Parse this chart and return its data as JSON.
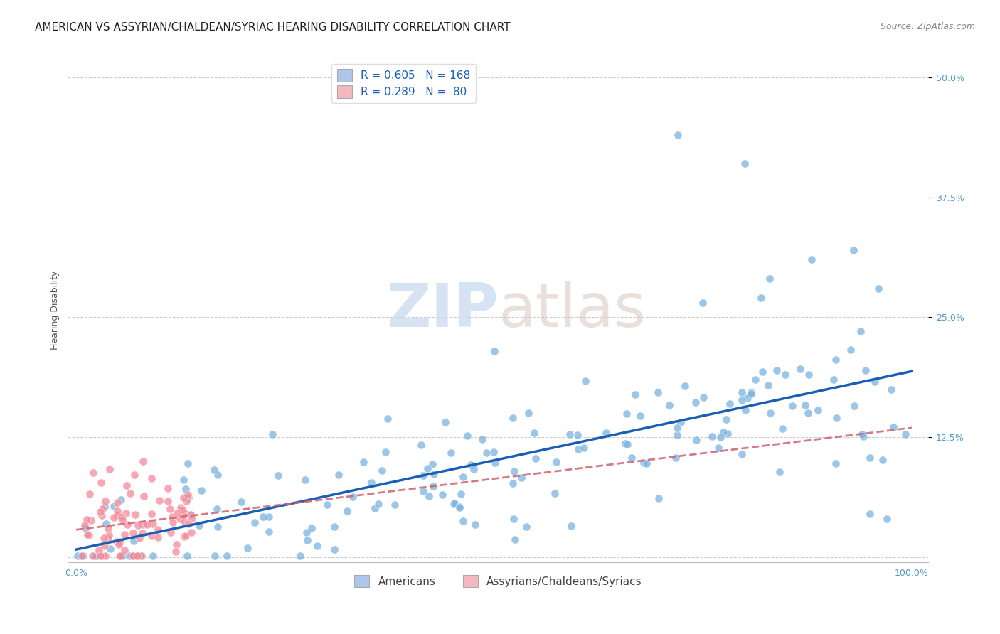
{
  "title": "AMERICAN VS ASSYRIAN/CHALDEAN/SYRIAC HEARING DISABILITY CORRELATION CHART",
  "source": "Source: ZipAtlas.com",
  "ylabel": "Hearing Disability",
  "ytick_values": [
    0.125,
    0.25,
    0.375,
    0.5
  ],
  "ytick_labels": [
    "12.5%",
    "25.0%",
    "37.5%",
    "50.0%"
  ],
  "xtick_show": [
    0.0,
    1.0
  ],
  "xtick_labels_show": [
    "0.0%",
    "100.0%"
  ],
  "xlim": [
    -0.01,
    1.02
  ],
  "ylim": [
    -0.005,
    0.52
  ],
  "legend_color1": "#aec6e8",
  "legend_color2": "#f4b8c1",
  "scatter_color1": "#7ab3e0",
  "scatter_color2": "#f48a9a",
  "scatter_edge1": "#5a9fd4",
  "scatter_edge2": "#e87a8a",
  "trendline_color1": "#1a5fb4",
  "trendline_color2": "#d06070",
  "watermark_part1": "ZIP",
  "watermark_part2": "atlas",
  "background_color": "#ffffff",
  "grid_color": "#cccccc",
  "R1": 0.605,
  "N1": 168,
  "R2": 0.289,
  "N2": 80,
  "legend_label1": "Americans",
  "legend_label2": "Assyrians/Chaldeans/Syriacs",
  "title_fontsize": 11,
  "source_fontsize": 9,
  "axis_label_fontsize": 9,
  "tick_fontsize": 9,
  "tick_color": "#5599cc",
  "legend_text_color": "#1a5fb4",
  "legend_fontsize": 11
}
